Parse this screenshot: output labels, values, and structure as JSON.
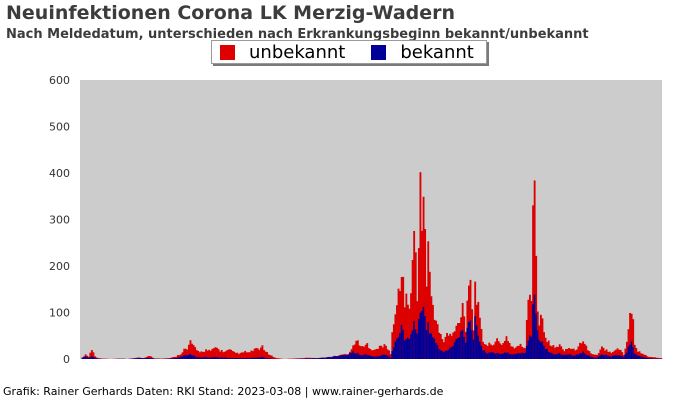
{
  "title": "Neuinfektionen Corona LK Merzig-Wadern",
  "subtitle": "Nach Meldedatum, unterschieden nach Erkrankungsbeginn bekannt/unbekannt",
  "footer": "Grafik: Rainer Gerhards  Daten: RKI Stand: 2023-03-08 | www.rainer-gerhards.de",
  "chart_data": {
    "type": "bar",
    "stacked": true,
    "grid": false,
    "legend_position": "top-center",
    "ylim": [
      0,
      600
    ],
    "yticks": [
      0,
      100,
      200,
      300,
      400,
      500,
      600
    ],
    "colors": {
      "plot_background": "#cccccc",
      "unbekannt": "#dd0000",
      "bekannt": "#000099"
    },
    "x_tick_labels_note": "dense, illegible date labels",
    "series": [
      {
        "name": "unbekannt",
        "anchors": [
          [
            0,
            0
          ],
          [
            3,
            10
          ],
          [
            5,
            5
          ],
          [
            7,
            22
          ],
          [
            9,
            6
          ],
          [
            11,
            2
          ],
          [
            14,
            1
          ],
          [
            19,
            0
          ],
          [
            24,
            1
          ],
          [
            30,
            0
          ],
          [
            37,
            3
          ],
          [
            40,
            2
          ],
          [
            44,
            7
          ],
          [
            47,
            1
          ],
          [
            52,
            1
          ],
          [
            57,
            2
          ],
          [
            61,
            6
          ],
          [
            64,
            12
          ],
          [
            66,
            22
          ],
          [
            68,
            20
          ],
          [
            70,
            40
          ],
          [
            72,
            28
          ],
          [
            74,
            18
          ],
          [
            77,
            16
          ],
          [
            80,
            20
          ],
          [
            83,
            17
          ],
          [
            86,
            26
          ],
          [
            89,
            19
          ],
          [
            92,
            16
          ],
          [
            95,
            20
          ],
          [
            98,
            14
          ],
          [
            102,
            12
          ],
          [
            105,
            16
          ],
          [
            108,
            14
          ],
          [
            111,
            22
          ],
          [
            114,
            20
          ],
          [
            116,
            30
          ],
          [
            118,
            16
          ],
          [
            121,
            8
          ],
          [
            125,
            2
          ],
          [
            130,
            0
          ],
          [
            136,
            1
          ],
          [
            142,
            2
          ],
          [
            146,
            3
          ],
          [
            150,
            2
          ],
          [
            155,
            3
          ],
          [
            160,
            5
          ],
          [
            165,
            8
          ],
          [
            171,
            12
          ],
          [
            174,
            30
          ],
          [
            177,
            40
          ],
          [
            180,
            25
          ],
          [
            183,
            32
          ],
          [
            186,
            22
          ],
          [
            189,
            20
          ],
          [
            192,
            30
          ],
          [
            195,
            28
          ],
          [
            198,
            12
          ],
          [
            199,
            60
          ],
          [
            201,
            90
          ],
          [
            203,
            150
          ],
          [
            205,
            190
          ],
          [
            206,
            170
          ],
          [
            207,
            130
          ],
          [
            210,
            120
          ],
          [
            212,
            200
          ],
          [
            213,
            260
          ],
          [
            214,
            230
          ],
          [
            215,
            140
          ],
          [
            216,
            290
          ],
          [
            217,
            370
          ],
          [
            218,
            320
          ],
          [
            219,
            345
          ],
          [
            220,
            300
          ],
          [
            221,
            160
          ],
          [
            222,
            245
          ],
          [
            223,
            180
          ],
          [
            224,
            140
          ],
          [
            226,
            100
          ],
          [
            228,
            70
          ],
          [
            230,
            50
          ],
          [
            232,
            40
          ],
          [
            234,
            55
          ],
          [
            237,
            50
          ],
          [
            240,
            70
          ],
          [
            242,
            80
          ],
          [
            244,
            130
          ],
          [
            245,
            90
          ],
          [
            246,
            65
          ],
          [
            247,
            150
          ],
          [
            249,
            180
          ],
          [
            250,
            120
          ],
          [
            251,
            60
          ],
          [
            252,
            180
          ],
          [
            253,
            140
          ],
          [
            255,
            80
          ],
          [
            257,
            40
          ],
          [
            260,
            30
          ],
          [
            263,
            35
          ],
          [
            266,
            40
          ],
          [
            269,
            30
          ],
          [
            272,
            50
          ],
          [
            275,
            28
          ],
          [
            278,
            25
          ],
          [
            281,
            30
          ],
          [
            284,
            25
          ],
          [
            286,
            130
          ],
          [
            287,
            150
          ],
          [
            288,
            140
          ],
          [
            289,
            355
          ],
          [
            290,
            420
          ],
          [
            291,
            230
          ],
          [
            292,
            120
          ],
          [
            293,
            80
          ],
          [
            294,
            100
          ],
          [
            296,
            70
          ],
          [
            298,
            40
          ],
          [
            301,
            30
          ],
          [
            303,
            25
          ],
          [
            306,
            30
          ],
          [
            309,
            20
          ],
          [
            312,
            25
          ],
          [
            315,
            20
          ],
          [
            318,
            25
          ],
          [
            321,
            45
          ],
          [
            324,
            20
          ],
          [
            327,
            10
          ],
          [
            330,
            8
          ],
          [
            333,
            25
          ],
          [
            336,
            20
          ],
          [
            339,
            15
          ],
          [
            342,
            22
          ],
          [
            345,
            20
          ],
          [
            347,
            10
          ],
          [
            349,
            40
          ],
          [
            351,
            100
          ],
          [
            352,
            110
          ],
          [
            353,
            85
          ],
          [
            354,
            30
          ],
          [
            356,
            18
          ],
          [
            359,
            12
          ],
          [
            362,
            6
          ],
          [
            365,
            4
          ],
          [
            368,
            3
          ],
          [
            371,
            2
          ]
        ]
      },
      {
        "name": "bekannt",
        "anchors": [
          [
            0,
            0
          ],
          [
            3,
            6
          ],
          [
            5,
            3
          ],
          [
            7,
            5
          ],
          [
            9,
            3
          ],
          [
            11,
            1
          ],
          [
            14,
            0
          ],
          [
            24,
            0
          ],
          [
            30,
            1
          ],
          [
            37,
            2
          ],
          [
            44,
            2
          ],
          [
            52,
            0
          ],
          [
            57,
            1
          ],
          [
            61,
            2
          ],
          [
            64,
            5
          ],
          [
            66,
            8
          ],
          [
            68,
            8
          ],
          [
            70,
            10
          ],
          [
            72,
            8
          ],
          [
            74,
            4
          ],
          [
            77,
            3
          ],
          [
            80,
            4
          ],
          [
            83,
            3
          ],
          [
            86,
            4
          ],
          [
            89,
            3
          ],
          [
            92,
            3
          ],
          [
            95,
            2
          ],
          [
            98,
            2
          ],
          [
            102,
            2
          ],
          [
            105,
            2
          ],
          [
            108,
            2
          ],
          [
            111,
            3
          ],
          [
            114,
            3
          ],
          [
            116,
            5
          ],
          [
            118,
            2
          ],
          [
            121,
            1
          ],
          [
            125,
            0
          ],
          [
            136,
            0
          ],
          [
            142,
            1
          ],
          [
            146,
            1
          ],
          [
            150,
            2
          ],
          [
            155,
            4
          ],
          [
            160,
            6
          ],
          [
            165,
            8
          ],
          [
            171,
            10
          ],
          [
            174,
            15
          ],
          [
            177,
            12
          ],
          [
            180,
            8
          ],
          [
            183,
            10
          ],
          [
            186,
            6
          ],
          [
            189,
            5
          ],
          [
            192,
            8
          ],
          [
            195,
            10
          ],
          [
            198,
            3
          ],
          [
            199,
            20
          ],
          [
            201,
            35
          ],
          [
            203,
            50
          ],
          [
            205,
            70
          ],
          [
            206,
            60
          ],
          [
            207,
            45
          ],
          [
            210,
            50
          ],
          [
            212,
            60
          ],
          [
            213,
            80
          ],
          [
            214,
            70
          ],
          [
            215,
            50
          ],
          [
            216,
            90
          ],
          [
            217,
            110
          ],
          [
            218,
            105
          ],
          [
            219,
            120
          ],
          [
            220,
            100
          ],
          [
            221,
            60
          ],
          [
            222,
            80
          ],
          [
            223,
            60
          ],
          [
            224,
            50
          ],
          [
            226,
            40
          ],
          [
            228,
            30
          ],
          [
            230,
            20
          ],
          [
            232,
            15
          ],
          [
            234,
            20
          ],
          [
            237,
            25
          ],
          [
            240,
            40
          ],
          [
            242,
            50
          ],
          [
            244,
            60
          ],
          [
            245,
            50
          ],
          [
            246,
            40
          ],
          [
            247,
            70
          ],
          [
            249,
            80
          ],
          [
            250,
            65
          ],
          [
            251,
            40
          ],
          [
            252,
            90
          ],
          [
            253,
            70
          ],
          [
            255,
            40
          ],
          [
            257,
            20
          ],
          [
            260,
            12
          ],
          [
            263,
            15
          ],
          [
            266,
            12
          ],
          [
            269,
            10
          ],
          [
            272,
            15
          ],
          [
            275,
            10
          ],
          [
            278,
            12
          ],
          [
            281,
            12
          ],
          [
            284,
            15
          ],
          [
            286,
            40
          ],
          [
            287,
            50
          ],
          [
            288,
            55
          ],
          [
            289,
            110
          ],
          [
            290,
            140
          ],
          [
            291,
            90
          ],
          [
            292,
            60
          ],
          [
            293,
            40
          ],
          [
            294,
            40
          ],
          [
            296,
            30
          ],
          [
            298,
            20
          ],
          [
            301,
            12
          ],
          [
            303,
            10
          ],
          [
            306,
            12
          ],
          [
            309,
            8
          ],
          [
            312,
            10
          ],
          [
            315,
            8
          ],
          [
            318,
            10
          ],
          [
            321,
            15
          ],
          [
            324,
            8
          ],
          [
            327,
            4
          ],
          [
            330,
            3
          ],
          [
            333,
            10
          ],
          [
            336,
            8
          ],
          [
            339,
            6
          ],
          [
            342,
            8
          ],
          [
            345,
            8
          ],
          [
            347,
            4
          ],
          [
            349,
            15
          ],
          [
            351,
            35
          ],
          [
            352,
            40
          ],
          [
            353,
            30
          ],
          [
            354,
            12
          ],
          [
            356,
            8
          ],
          [
            359,
            5
          ],
          [
            362,
            2
          ],
          [
            365,
            1
          ],
          [
            368,
            1
          ],
          [
            371,
            0
          ]
        ]
      }
    ]
  }
}
